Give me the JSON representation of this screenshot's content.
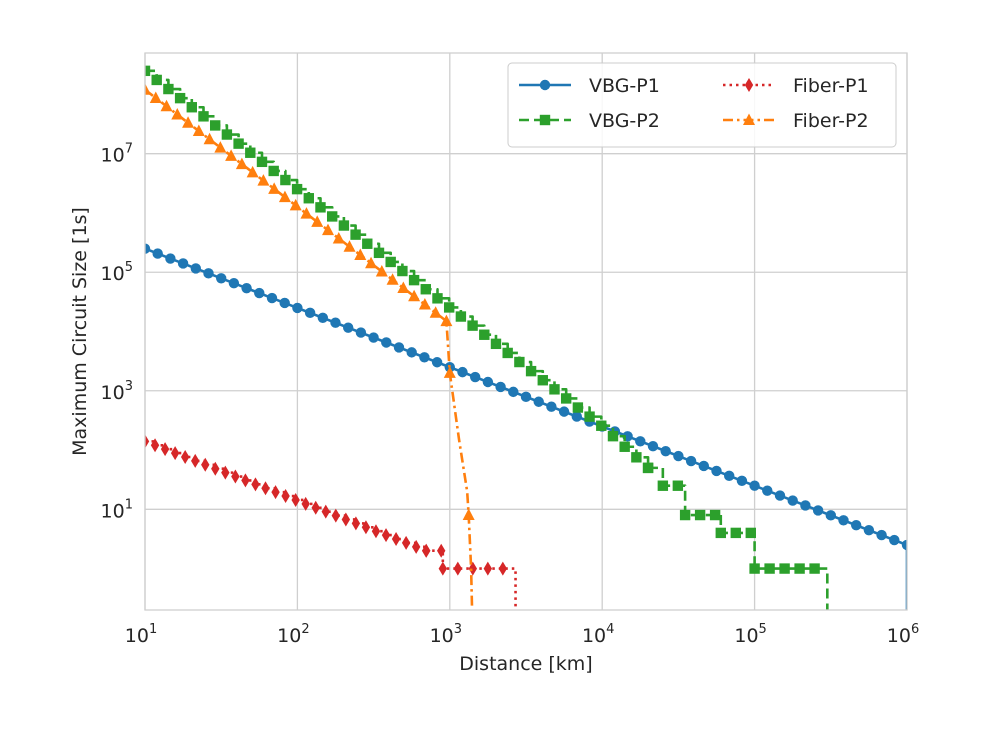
{
  "chart_data": {
    "type": "line",
    "xlabel": "Distance [km]",
    "ylabel": "Maximum Circuit Size [1s]",
    "xscale": "log",
    "yscale": "log",
    "xlim": [
      10,
      1000000
    ],
    "ylim": [
      0.2,
      500000000
    ],
    "grid": true,
    "legend_position": "top-right",
    "x_ticks": [
      {
        "value": 10,
        "base": "10",
        "exp": "1"
      },
      {
        "value": 100,
        "base": "10",
        "exp": "2"
      },
      {
        "value": 1000,
        "base": "10",
        "exp": "3"
      },
      {
        "value": 10000,
        "base": "10",
        "exp": "4"
      },
      {
        "value": 100000,
        "base": "10",
        "exp": "5"
      },
      {
        "value": 1000000,
        "base": "10",
        "exp": "6"
      }
    ],
    "y_ticks": [
      {
        "value": 10,
        "base": "10",
        "exp": "1"
      },
      {
        "value": 1000,
        "base": "10",
        "exp": "3"
      },
      {
        "value": 100000,
        "base": "10",
        "exp": "5"
      },
      {
        "value": 10000000,
        "base": "10",
        "exp": "7"
      }
    ],
    "series": [
      {
        "name": "VBG-P1",
        "color": "#1f77b4",
        "dash": "solid",
        "marker": "circle",
        "x": [
          10,
          1000000
        ],
        "y": [
          250000,
          2.5
        ],
        "step": false,
        "drop_to_bottom": true
      },
      {
        "name": "VBG-P2",
        "color": "#2ca02c",
        "dash": "dashed",
        "marker": "square",
        "x": [
          10,
          1000,
          10000,
          20000
        ],
        "y": [
          250000000,
          25000,
          250,
          50
        ],
        "step": true,
        "step_tail": [
          [
            20000,
            50
          ],
          [
            25000,
            50
          ],
          [
            25000,
            25
          ],
          [
            35000,
            25
          ],
          [
            35000,
            8
          ],
          [
            60000,
            8
          ],
          [
            60000,
            4
          ],
          [
            100000,
            4
          ],
          [
            100000,
            1
          ],
          [
            300000,
            1
          ],
          [
            300000,
            0.2
          ]
        ]
      },
      {
        "name": "Fiber-P1",
        "color": "#d62728",
        "dash": "dotted",
        "marker": "diamond",
        "x": [
          10,
          700
        ],
        "y": [
          140,
          2
        ],
        "step": true,
        "step_tail": [
          [
            700,
            2
          ],
          [
            900,
            2
          ],
          [
            900,
            1
          ],
          [
            2700,
            1
          ],
          [
            2700,
            0.2
          ]
        ]
      },
      {
        "name": "Fiber-P2",
        "color": "#ff7f0e",
        "dash": "dashdot",
        "marker": "triangle",
        "x": [
          10,
          950
        ],
        "y": [
          120000000,
          15000
        ],
        "step": false,
        "tail": [
          [
            950,
            15000
          ],
          [
            1000,
            2000
          ],
          [
            1150,
            150
          ],
          [
            1300,
            20
          ],
          [
            1330,
            8
          ],
          [
            1380,
            1
          ],
          [
            1400,
            0.2
          ]
        ]
      }
    ],
    "legend": {
      "entries": [
        "VBG-P1",
        "VBG-P2",
        "Fiber-P1",
        "Fiber-P2"
      ]
    }
  }
}
